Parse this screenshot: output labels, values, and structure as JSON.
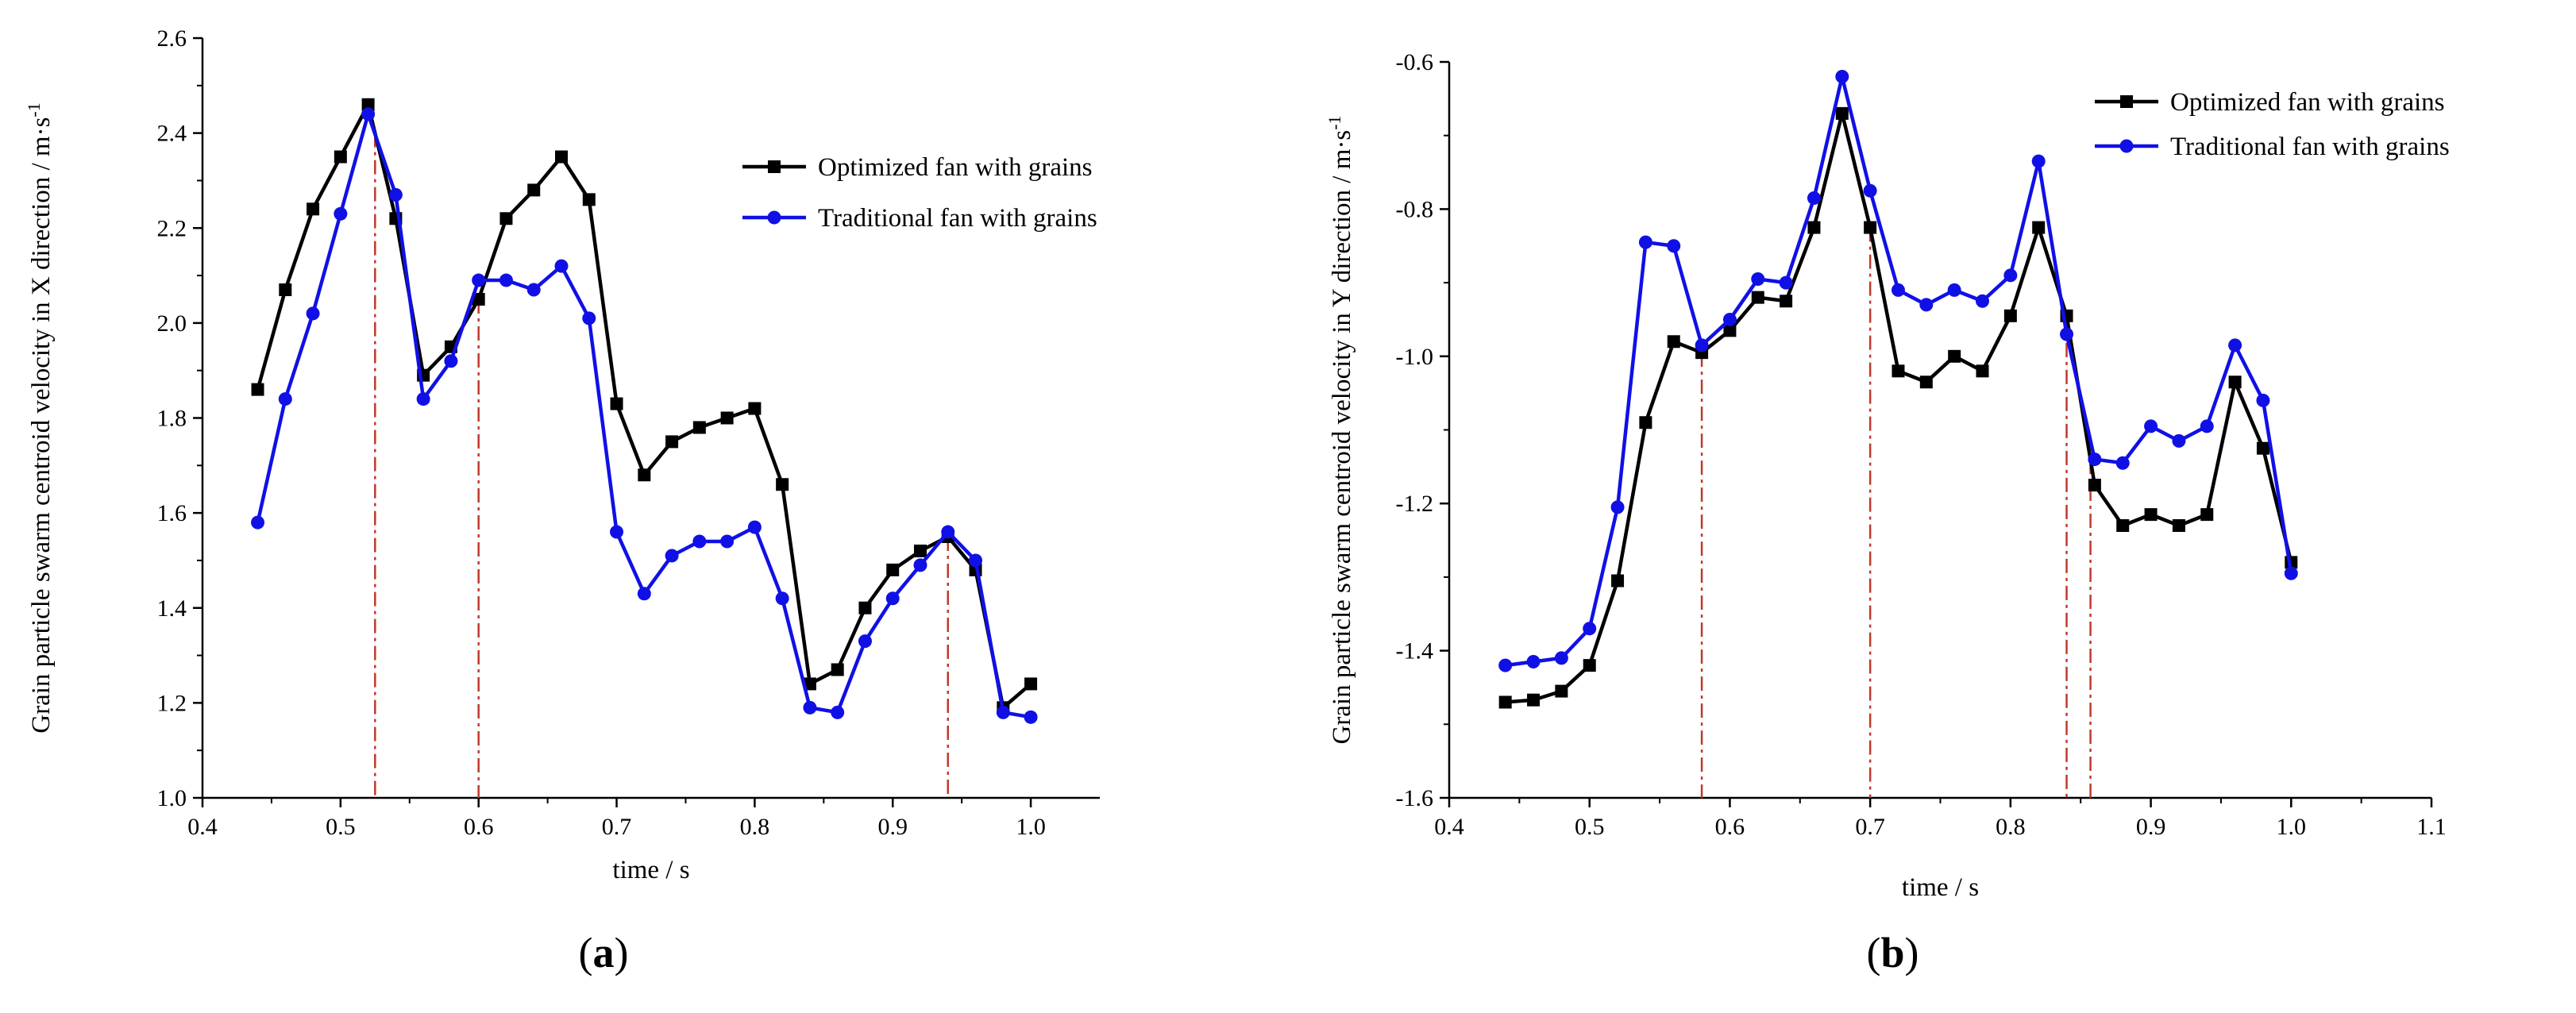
{
  "figure_labels": [
    "(a)",
    "(b)"
  ],
  "colors": {
    "optimized": "#000000",
    "traditional": "#1010e6",
    "guide": "#c0392b"
  },
  "chart_data": [
    {
      "type": "line",
      "panel": "a",
      "label_open": "(",
      "label_letter": "a",
      "label_close": ")",
      "title": "",
      "xlabel": "time / s",
      "ylabel": "Grain particle swarm centroid velocity in X direction / m·s",
      "ylabel_sup": "-1",
      "xlim": [
        0.4,
        1.05
      ],
      "ylim": [
        1.0,
        2.6
      ],
      "xticks": [
        0.4,
        0.5,
        0.6,
        0.7,
        0.8,
        0.9,
        1.0
      ],
      "xtick_labels": [
        "0.4",
        "0.5",
        "0.6",
        "0.7",
        "0.8",
        "0.9",
        "1.0"
      ],
      "yticks": [
        1.0,
        1.2,
        1.4,
        1.6,
        1.8,
        2.0,
        2.2,
        2.4,
        2.6
      ],
      "ytick_labels": [
        "1.0",
        "1.2",
        "1.4",
        "1.6",
        "1.8",
        "2.0",
        "2.2",
        "2.4",
        "2.6"
      ],
      "legend_position": "top-right",
      "x": [
        0.44,
        0.46,
        0.48,
        0.5,
        0.52,
        0.54,
        0.56,
        0.58,
        0.6,
        0.62,
        0.64,
        0.66,
        0.68,
        0.7,
        0.72,
        0.74,
        0.76,
        0.78,
        0.8,
        0.82,
        0.84,
        0.86,
        0.88,
        0.9,
        0.92,
        0.94,
        0.96,
        0.98,
        1.0
      ],
      "series": [
        {
          "name": "Optimized fan with grains",
          "marker": "square",
          "color": "#000000",
          "values": [
            1.86,
            2.07,
            2.24,
            2.35,
            2.46,
            2.22,
            1.89,
            1.95,
            2.05,
            2.22,
            2.28,
            2.35,
            2.26,
            1.83,
            1.68,
            1.75,
            1.78,
            1.8,
            1.82,
            1.66,
            1.24,
            1.27,
            1.4,
            1.48,
            1.52,
            1.55,
            1.48,
            1.19,
            1.24
          ]
        },
        {
          "name": "Traditional fan with grains",
          "marker": "circle",
          "color": "#1010e6",
          "values": [
            1.58,
            1.84,
            2.02,
            2.23,
            2.44,
            2.27,
            1.84,
            1.92,
            2.09,
            2.09,
            2.07,
            2.12,
            2.01,
            1.56,
            1.43,
            1.51,
            1.54,
            1.54,
            1.57,
            1.42,
            1.19,
            1.18,
            1.33,
            1.42,
            1.49,
            1.56,
            1.5,
            1.18,
            1.17
          ]
        }
      ],
      "guide_lines_x": [
        0.525,
        0.6,
        0.94
      ]
    },
    {
      "type": "line",
      "panel": "b",
      "label_open": "(",
      "label_letter": "b",
      "label_close": ")",
      "title": "",
      "xlabel": "time / s",
      "ylabel": "Grain particle swarm centroid velocity in Y direction / m·s",
      "ylabel_sup": "-1",
      "xlim": [
        0.4,
        1.1
      ],
      "ylim": [
        -1.6,
        -0.6
      ],
      "xticks": [
        0.4,
        0.5,
        0.6,
        0.7,
        0.8,
        0.9,
        1.0,
        1.1
      ],
      "xtick_labels": [
        "0.4",
        "0.5",
        "0.6",
        "0.7",
        "0.8",
        "0.9",
        "1.0",
        "1.1"
      ],
      "yticks": [
        -1.6,
        -1.4,
        -1.2,
        -1.0,
        -0.8,
        -0.6
      ],
      "ytick_labels": [
        "-1.6",
        "-1.4",
        "-1.2",
        "-1.0",
        "-0.8",
        "-0.6"
      ],
      "legend_position": "top-right",
      "x": [
        0.44,
        0.46,
        0.48,
        0.5,
        0.52,
        0.54,
        0.56,
        0.58,
        0.6,
        0.62,
        0.64,
        0.66,
        0.68,
        0.7,
        0.72,
        0.74,
        0.76,
        0.78,
        0.8,
        0.82,
        0.84,
        0.86,
        0.88,
        0.9,
        0.92,
        0.94,
        0.96,
        0.98,
        1.0
      ],
      "series": [
        {
          "name": "Optimized fan with grains",
          "marker": "square",
          "color": "#000000",
          "values": [
            -1.47,
            -1.467,
            -1.455,
            -1.42,
            -1.305,
            -1.09,
            -0.98,
            -0.995,
            -0.965,
            -0.92,
            -0.925,
            -0.825,
            -0.67,
            -0.825,
            -1.02,
            -1.035,
            -1.0,
            -1.02,
            -0.945,
            -0.825,
            -0.945,
            -1.175,
            -1.23,
            -1.215,
            -1.23,
            -1.215,
            -1.035,
            -1.125,
            -1.28
          ]
        },
        {
          "name": "Traditional fan with grains",
          "marker": "circle",
          "color": "#1010e6",
          "values": [
            -1.42,
            -1.415,
            -1.41,
            -1.37,
            -1.205,
            -0.845,
            -0.85,
            -0.985,
            -0.95,
            -0.895,
            -0.9,
            -0.785,
            -0.62,
            -0.775,
            -0.91,
            -0.93,
            -0.91,
            -0.925,
            -0.89,
            -0.735,
            -0.97,
            -1.14,
            -1.145,
            -1.095,
            -1.115,
            -1.095,
            -0.985,
            -1.06,
            -1.295
          ]
        }
      ],
      "guide_lines_x": [
        0.58,
        0.7,
        0.84,
        0.857
      ]
    }
  ]
}
